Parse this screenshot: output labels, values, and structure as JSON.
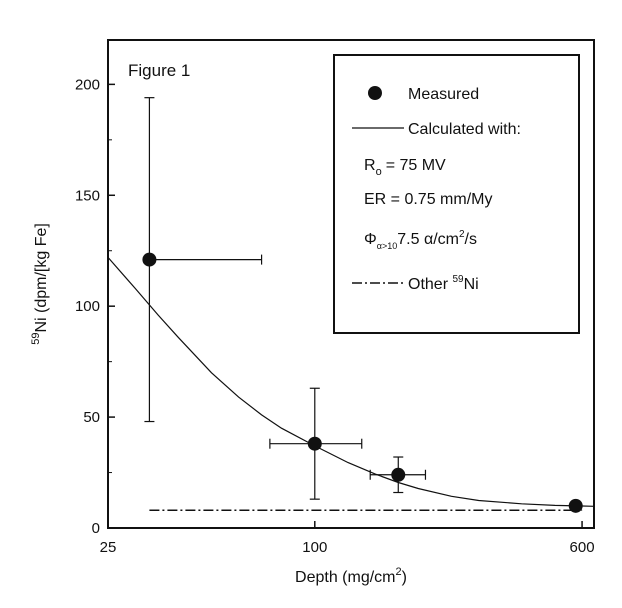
{
  "figure_label": "Figure 1",
  "chart_data": {
    "type": "scatter",
    "xlabel": "Depth (mg/cm",
    "xlabel_sup": "2",
    "xlabel_close": ")",
    "ylabel_sup": "59",
    "ylabel": "Ni (dpm/[kg Fe]",
    "x_scale": "log",
    "xlim": [
      25,
      650
    ],
    "ylim": [
      0,
      220
    ],
    "x_ticks": [
      {
        "value": 25,
        "label": "25"
      },
      {
        "value": 100,
        "label": "100"
      },
      {
        "value": 600,
        "label": "600"
      }
    ],
    "y_ticks": [
      {
        "value": 0,
        "label": "0"
      },
      {
        "value": 50,
        "label": "50"
      },
      {
        "value": 100,
        "label": "100"
      },
      {
        "value": 150,
        "label": "150"
      },
      {
        "value": 200,
        "label": "200"
      }
    ],
    "grid": false,
    "legend_position": "top-right",
    "series": [
      {
        "name": "Measured",
        "kind": "points",
        "points": [
          {
            "x": 33,
            "y": 121,
            "y_low": 48,
            "y_high": 194,
            "x_low": 33,
            "x_high": 70
          },
          {
            "x": 100,
            "y": 38,
            "y_low": 13,
            "y_high": 63,
            "x_low": 74,
            "x_high": 137
          },
          {
            "x": 175,
            "y": 24,
            "y_low": 16,
            "y_high": 32,
            "x_low": 145,
            "x_high": 210
          },
          {
            "x": 575,
            "y": 10,
            "y_low": 10,
            "y_high": 10,
            "x_low": 575,
            "x_high": 575
          }
        ]
      },
      {
        "name": "Calculated with:",
        "kind": "line",
        "style": "solid",
        "x": [
          25,
          30,
          35,
          40,
          50,
          60,
          70,
          80,
          100,
          125,
          150,
          175,
          200,
          250,
          300,
          400,
          500,
          600,
          650
        ],
        "y": [
          122,
          108,
          96,
          86,
          70,
          59,
          51,
          45,
          37,
          29.5,
          24.3,
          20.5,
          17.8,
          14.3,
          12.4,
          10.9,
          10.2,
          9.9,
          9.8
        ]
      },
      {
        "name": "Other",
        "kind": "line",
        "style": "dashdot",
        "x": [
          33,
          600
        ],
        "y": [
          8,
          8
        ]
      }
    ]
  },
  "legend": {
    "measured": "Measured",
    "calculated": "Calculated with:",
    "r0_main": "R",
    "r0_sub": "o",
    "r0_value": "= 75 MV",
    "er": "ER = 0.75 mm/My",
    "phi_main": "Φ",
    "phi_sub": "α>10",
    "phi_value": "7.5 α/cm",
    "phi_sup": "2",
    "phi_tail": "/s",
    "other_main": "Other ",
    "other_sup": "59",
    "other_tail": "Ni"
  },
  "colors": {
    "ink": "#111111",
    "background": "#ffffff"
  }
}
